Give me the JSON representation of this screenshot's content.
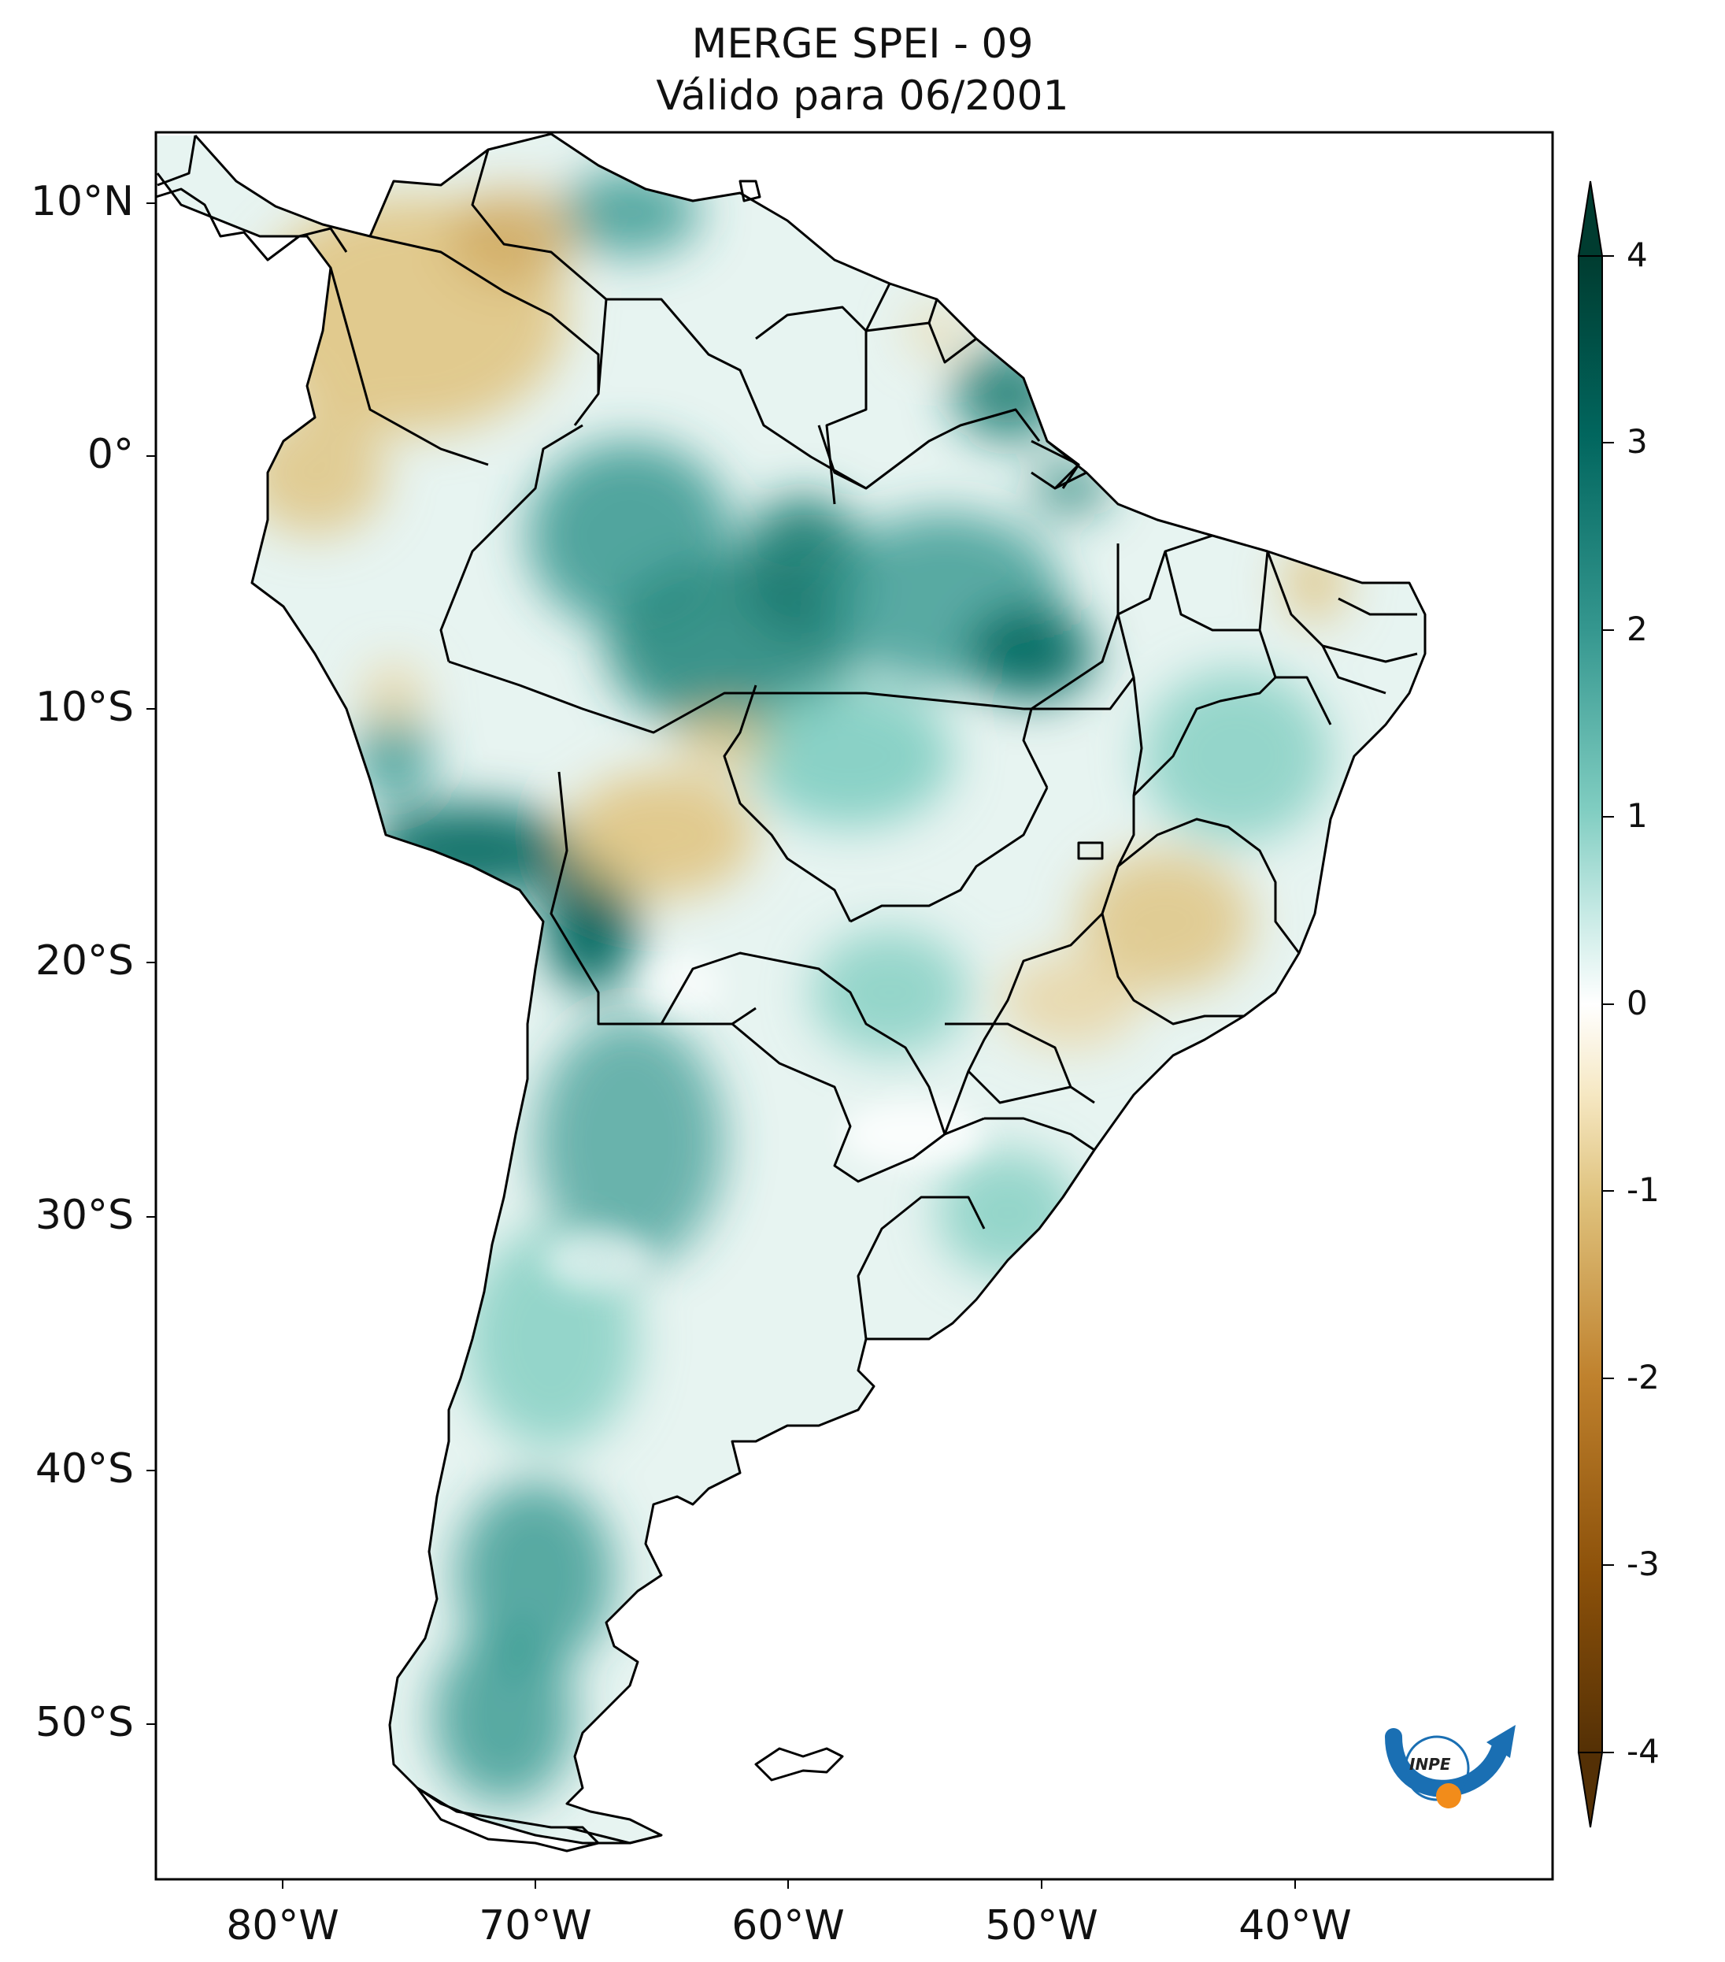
{
  "title": {
    "line1": "MERGE   SPEI - 09",
    "line2": "Válido para 06/2001"
  },
  "map": {
    "lat_labels": [
      "10°N",
      "0°",
      "10°S",
      "20°S",
      "30°S",
      "40°S",
      "50°S"
    ],
    "lon_labels": [
      "80°W",
      "70°W",
      "60°W",
      "50°W",
      "40°W"
    ]
  },
  "colorbar": {
    "ticks": [
      "4",
      "3",
      "2",
      "1",
      "0",
      "-1",
      "-2",
      "-3",
      "-4"
    ],
    "range": [
      -4,
      4
    ],
    "colors": {
      "dry_extreme": "#543005",
      "dry_strong": "#8c510a",
      "dry": "#bf812d",
      "dry_light": "#dfc27d",
      "dry_faint": "#f6e8c3",
      "neutral": "#ffffff",
      "wet_faint": "#c7eae5",
      "wet_light": "#80cdc1",
      "wet": "#35978f",
      "wet_strong": "#01665e",
      "wet_extreme": "#003c30"
    }
  },
  "logo": {
    "text": "INPE"
  }
}
